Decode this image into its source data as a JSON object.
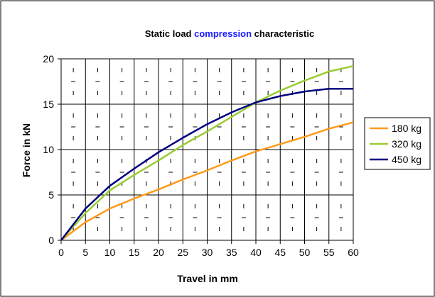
{
  "chart_data": {
    "type": "line",
    "title_parts": [
      {
        "text": "Static load ",
        "color": "#000000"
      },
      {
        "text": "compression",
        "color": "#1a1aff"
      },
      {
        "text": " characteristic",
        "color": "#000000"
      }
    ],
    "xlabel": "Travel in mm",
    "ylabel": "Force in kN",
    "xlim": [
      0,
      60
    ],
    "ylim": [
      0,
      20
    ],
    "x_ticks": [
      "0",
      "5",
      "10",
      "15",
      "20",
      "25",
      "30",
      "35",
      "40",
      "45",
      "50",
      "55",
      "60"
    ],
    "y_ticks": [
      "0",
      "5",
      "10",
      "15",
      "20"
    ],
    "grid": true,
    "legend_position": "right",
    "x": [
      0,
      5,
      10,
      15,
      20,
      25,
      30,
      35,
      40,
      45,
      50,
      55,
      60
    ],
    "series": [
      {
        "name": "180 kg",
        "color": "#ff9a1a",
        "values": [
          0,
          2.0,
          3.5,
          4.6,
          5.6,
          6.7,
          7.7,
          8.8,
          9.8,
          10.6,
          11.4,
          12.3,
          13.0
        ]
      },
      {
        "name": "320 kg",
        "color": "#99cc33",
        "values": [
          0,
          3.0,
          5.5,
          7.2,
          8.8,
          10.5,
          12.0,
          13.6,
          15.2,
          16.5,
          17.6,
          18.6,
          19.2
        ]
      },
      {
        "name": "450 kg",
        "color": "#000080",
        "values": [
          0,
          3.5,
          6.0,
          7.9,
          9.7,
          11.3,
          12.8,
          14.1,
          15.2,
          15.9,
          16.4,
          16.7,
          16.7
        ]
      }
    ]
  }
}
